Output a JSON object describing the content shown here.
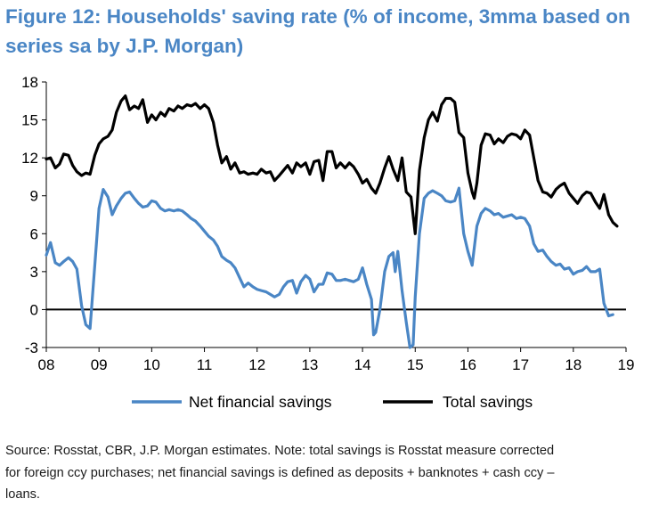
{
  "header": {
    "title_line1": "Figure 12: Households' saving rate (% of income, 3mma based on",
    "title_line2": "series sa by J.P. Morgan)"
  },
  "footer": {
    "source_line1": "Source: Rosstat, CBR, J.P. Morgan estimates. Note: total savings is Rosstat measure corrected",
    "source_line2": "for foreign ccy purchases; net financial savings is defined as deposits + banknotes + cash ccy –",
    "source_line3": "loans."
  },
  "chart_data": {
    "type": "line",
    "title": "Figure 12: Households' saving rate (% of income, 3mma based on series sa by J.P. Morgan)",
    "xlabel": "",
    "ylabel": "",
    "x_ticks": [
      "08",
      "09",
      "10",
      "11",
      "12",
      "13",
      "14",
      "15",
      "16",
      "17",
      "18",
      "19"
    ],
    "y_ticks": [
      "18",
      "15",
      "12",
      "9",
      "6",
      "3",
      "0",
      "-3"
    ],
    "xlim": [
      2008.0,
      2019.0
    ],
    "ylim": [
      -3,
      18
    ],
    "grid": false,
    "legend_position": "bottom",
    "zero_line": true,
    "series": [
      {
        "name": "Net financial savings",
        "color": "#4a86c5",
        "points": [
          [
            2008.0,
            4.3
          ],
          [
            2008.08,
            5.3
          ],
          [
            2008.17,
            3.7
          ],
          [
            2008.25,
            3.5
          ],
          [
            2008.33,
            3.8
          ],
          [
            2008.42,
            4.1
          ],
          [
            2008.5,
            3.8
          ],
          [
            2008.58,
            3.2
          ],
          [
            2008.67,
            0.3
          ],
          [
            2008.75,
            -1.2
          ],
          [
            2008.83,
            -1.5
          ],
          [
            2008.92,
            3.5
          ],
          [
            2009.0,
            8.0
          ],
          [
            2009.08,
            9.5
          ],
          [
            2009.17,
            8.9
          ],
          [
            2009.25,
            7.5
          ],
          [
            2009.33,
            8.2
          ],
          [
            2009.42,
            8.8
          ],
          [
            2009.5,
            9.2
          ],
          [
            2009.58,
            9.3
          ],
          [
            2009.67,
            8.8
          ],
          [
            2009.75,
            8.4
          ],
          [
            2009.83,
            8.1
          ],
          [
            2009.92,
            8.2
          ],
          [
            2010.0,
            8.6
          ],
          [
            2010.08,
            8.5
          ],
          [
            2010.17,
            8.0
          ],
          [
            2010.25,
            7.8
          ],
          [
            2010.33,
            7.9
          ],
          [
            2010.42,
            7.8
          ],
          [
            2010.5,
            7.9
          ],
          [
            2010.58,
            7.8
          ],
          [
            2010.67,
            7.5
          ],
          [
            2010.75,
            7.2
          ],
          [
            2010.83,
            7.0
          ],
          [
            2010.92,
            6.6
          ],
          [
            2011.0,
            6.2
          ],
          [
            2011.08,
            5.8
          ],
          [
            2011.17,
            5.5
          ],
          [
            2011.25,
            5.0
          ],
          [
            2011.33,
            4.2
          ],
          [
            2011.42,
            3.9
          ],
          [
            2011.5,
            3.7
          ],
          [
            2011.58,
            3.3
          ],
          [
            2011.67,
            2.5
          ],
          [
            2011.75,
            1.8
          ],
          [
            2011.83,
            2.1
          ],
          [
            2011.92,
            1.8
          ],
          [
            2012.0,
            1.6
          ],
          [
            2012.08,
            1.5
          ],
          [
            2012.17,
            1.4
          ],
          [
            2012.25,
            1.2
          ],
          [
            2012.33,
            1.0
          ],
          [
            2012.42,
            1.2
          ],
          [
            2012.5,
            1.8
          ],
          [
            2012.58,
            2.2
          ],
          [
            2012.67,
            2.3
          ],
          [
            2012.75,
            1.3
          ],
          [
            2012.83,
            2.2
          ],
          [
            2012.92,
            2.7
          ],
          [
            2013.0,
            2.4
          ],
          [
            2013.08,
            1.4
          ],
          [
            2013.17,
            2.0
          ],
          [
            2013.25,
            2.0
          ],
          [
            2013.33,
            2.9
          ],
          [
            2013.42,
            2.8
          ],
          [
            2013.5,
            2.3
          ],
          [
            2013.58,
            2.3
          ],
          [
            2013.67,
            2.4
          ],
          [
            2013.75,
            2.3
          ],
          [
            2013.83,
            2.2
          ],
          [
            2013.92,
            2.4
          ],
          [
            2014.0,
            3.3
          ],
          [
            2014.08,
            2.0
          ],
          [
            2014.17,
            0.8
          ],
          [
            2014.21,
            -2.0
          ],
          [
            2014.25,
            -1.8
          ],
          [
            2014.33,
            0.0
          ],
          [
            2014.42,
            3.0
          ],
          [
            2014.5,
            4.2
          ],
          [
            2014.58,
            4.5
          ],
          [
            2014.62,
            3.0
          ],
          [
            2014.67,
            4.6
          ],
          [
            2014.75,
            1.5
          ],
          [
            2014.83,
            -1.0
          ],
          [
            2014.9,
            -3.0
          ],
          [
            2014.96,
            -2.8
          ],
          [
            2015.0,
            1.0
          ],
          [
            2015.08,
            6.0
          ],
          [
            2015.17,
            8.8
          ],
          [
            2015.25,
            9.2
          ],
          [
            2015.33,
            9.4
          ],
          [
            2015.42,
            9.2
          ],
          [
            2015.5,
            9.0
          ],
          [
            2015.58,
            8.6
          ],
          [
            2015.67,
            8.5
          ],
          [
            2015.75,
            8.6
          ],
          [
            2015.83,
            9.6
          ],
          [
            2015.92,
            6.0
          ],
          [
            2016.0,
            4.6
          ],
          [
            2016.08,
            3.5
          ],
          [
            2016.17,
            6.6
          ],
          [
            2016.25,
            7.6
          ],
          [
            2016.33,
            8.0
          ],
          [
            2016.42,
            7.8
          ],
          [
            2016.5,
            7.5
          ],
          [
            2016.58,
            7.6
          ],
          [
            2016.67,
            7.3
          ],
          [
            2016.75,
            7.4
          ],
          [
            2016.83,
            7.5
          ],
          [
            2016.92,
            7.2
          ],
          [
            2017.0,
            7.3
          ],
          [
            2017.08,
            7.2
          ],
          [
            2017.17,
            6.6
          ],
          [
            2017.25,
            5.2
          ],
          [
            2017.33,
            4.6
          ],
          [
            2017.42,
            4.7
          ],
          [
            2017.5,
            4.2
          ],
          [
            2017.58,
            3.8
          ],
          [
            2017.67,
            3.5
          ],
          [
            2017.75,
            3.6
          ],
          [
            2017.83,
            3.2
          ],
          [
            2017.92,
            3.3
          ],
          [
            2018.0,
            2.8
          ],
          [
            2018.08,
            3.0
          ],
          [
            2018.17,
            3.1
          ],
          [
            2018.25,
            3.4
          ],
          [
            2018.33,
            3.0
          ],
          [
            2018.42,
            3.0
          ],
          [
            2018.5,
            3.2
          ],
          [
            2018.58,
            0.5
          ],
          [
            2018.67,
            -0.5
          ],
          [
            2018.75,
            -0.4
          ]
        ]
      },
      {
        "name": "Total savings",
        "color": "#000000",
        "points": [
          [
            2008.0,
            11.9
          ],
          [
            2008.08,
            12.0
          ],
          [
            2008.17,
            11.2
          ],
          [
            2008.25,
            11.5
          ],
          [
            2008.33,
            12.3
          ],
          [
            2008.42,
            12.2
          ],
          [
            2008.5,
            11.4
          ],
          [
            2008.58,
            10.9
          ],
          [
            2008.67,
            10.6
          ],
          [
            2008.75,
            10.8
          ],
          [
            2008.83,
            10.7
          ],
          [
            2008.92,
            12.2
          ],
          [
            2009.0,
            13.1
          ],
          [
            2009.08,
            13.5
          ],
          [
            2009.17,
            13.7
          ],
          [
            2009.25,
            14.2
          ],
          [
            2009.33,
            15.6
          ],
          [
            2009.42,
            16.5
          ],
          [
            2009.5,
            16.9
          ],
          [
            2009.58,
            15.8
          ],
          [
            2009.67,
            16.1
          ],
          [
            2009.75,
            15.9
          ],
          [
            2009.83,
            16.6
          ],
          [
            2009.92,
            14.8
          ],
          [
            2010.0,
            15.4
          ],
          [
            2010.08,
            15.0
          ],
          [
            2010.17,
            15.6
          ],
          [
            2010.25,
            15.3
          ],
          [
            2010.33,
            15.9
          ],
          [
            2010.42,
            15.7
          ],
          [
            2010.5,
            16.1
          ],
          [
            2010.58,
            15.9
          ],
          [
            2010.67,
            16.2
          ],
          [
            2010.75,
            16.1
          ],
          [
            2010.83,
            16.3
          ],
          [
            2010.92,
            15.9
          ],
          [
            2011.0,
            16.2
          ],
          [
            2011.08,
            15.9
          ],
          [
            2011.17,
            14.8
          ],
          [
            2011.25,
            13.0
          ],
          [
            2011.33,
            11.6
          ],
          [
            2011.42,
            12.1
          ],
          [
            2011.5,
            11.1
          ],
          [
            2011.58,
            11.6
          ],
          [
            2011.67,
            10.8
          ],
          [
            2011.75,
            10.9
          ],
          [
            2011.83,
            10.7
          ],
          [
            2011.92,
            10.8
          ],
          [
            2012.0,
            10.7
          ],
          [
            2012.08,
            11.1
          ],
          [
            2012.17,
            10.8
          ],
          [
            2012.25,
            10.9
          ],
          [
            2012.33,
            10.2
          ],
          [
            2012.42,
            10.6
          ],
          [
            2012.5,
            11.0
          ],
          [
            2012.58,
            11.4
          ],
          [
            2012.67,
            10.8
          ],
          [
            2012.75,
            11.6
          ],
          [
            2012.83,
            11.3
          ],
          [
            2012.92,
            11.6
          ],
          [
            2013.0,
            10.7
          ],
          [
            2013.08,
            11.7
          ],
          [
            2013.17,
            11.8
          ],
          [
            2013.25,
            10.2
          ],
          [
            2013.33,
            12.5
          ],
          [
            2013.42,
            12.5
          ],
          [
            2013.5,
            11.2
          ],
          [
            2013.58,
            11.6
          ],
          [
            2013.67,
            11.2
          ],
          [
            2013.75,
            11.6
          ],
          [
            2013.83,
            11.3
          ],
          [
            2013.92,
            10.7
          ],
          [
            2014.0,
            10.0
          ],
          [
            2014.08,
            10.3
          ],
          [
            2014.17,
            9.6
          ],
          [
            2014.25,
            9.2
          ],
          [
            2014.33,
            10.0
          ],
          [
            2014.42,
            11.2
          ],
          [
            2014.5,
            12.1
          ],
          [
            2014.58,
            11.1
          ],
          [
            2014.67,
            10.2
          ],
          [
            2014.75,
            12.0
          ],
          [
            2014.83,
            9.3
          ],
          [
            2014.92,
            8.9
          ],
          [
            2015.0,
            6.0
          ],
          [
            2015.08,
            11.0
          ],
          [
            2015.17,
            13.6
          ],
          [
            2015.25,
            15.0
          ],
          [
            2015.33,
            15.6
          ],
          [
            2015.42,
            14.9
          ],
          [
            2015.5,
            16.2
          ],
          [
            2015.58,
            16.7
          ],
          [
            2015.67,
            16.7
          ],
          [
            2015.75,
            16.4
          ],
          [
            2015.83,
            14.0
          ],
          [
            2015.92,
            13.6
          ],
          [
            2016.0,
            10.8
          ],
          [
            2016.08,
            9.3
          ],
          [
            2016.12,
            8.8
          ],
          [
            2016.17,
            10.0
          ],
          [
            2016.25,
            13.0
          ],
          [
            2016.33,
            13.9
          ],
          [
            2016.42,
            13.8
          ],
          [
            2016.5,
            13.1
          ],
          [
            2016.58,
            13.5
          ],
          [
            2016.67,
            13.2
          ],
          [
            2016.75,
            13.7
          ],
          [
            2016.83,
            13.9
          ],
          [
            2016.92,
            13.8
          ],
          [
            2017.0,
            13.5
          ],
          [
            2017.08,
            14.2
          ],
          [
            2017.17,
            13.8
          ],
          [
            2017.25,
            12.0
          ],
          [
            2017.33,
            10.2
          ],
          [
            2017.42,
            9.3
          ],
          [
            2017.5,
            9.2
          ],
          [
            2017.58,
            8.9
          ],
          [
            2017.67,
            9.5
          ],
          [
            2017.75,
            9.8
          ],
          [
            2017.83,
            10.0
          ],
          [
            2017.92,
            9.2
          ],
          [
            2018.0,
            8.8
          ],
          [
            2018.08,
            8.4
          ],
          [
            2018.17,
            9.0
          ],
          [
            2018.25,
            9.3
          ],
          [
            2018.33,
            9.2
          ],
          [
            2018.42,
            8.5
          ],
          [
            2018.5,
            8.0
          ],
          [
            2018.58,
            9.1
          ],
          [
            2018.67,
            7.5
          ],
          [
            2018.75,
            6.9
          ],
          [
            2018.83,
            6.6
          ]
        ]
      }
    ]
  }
}
